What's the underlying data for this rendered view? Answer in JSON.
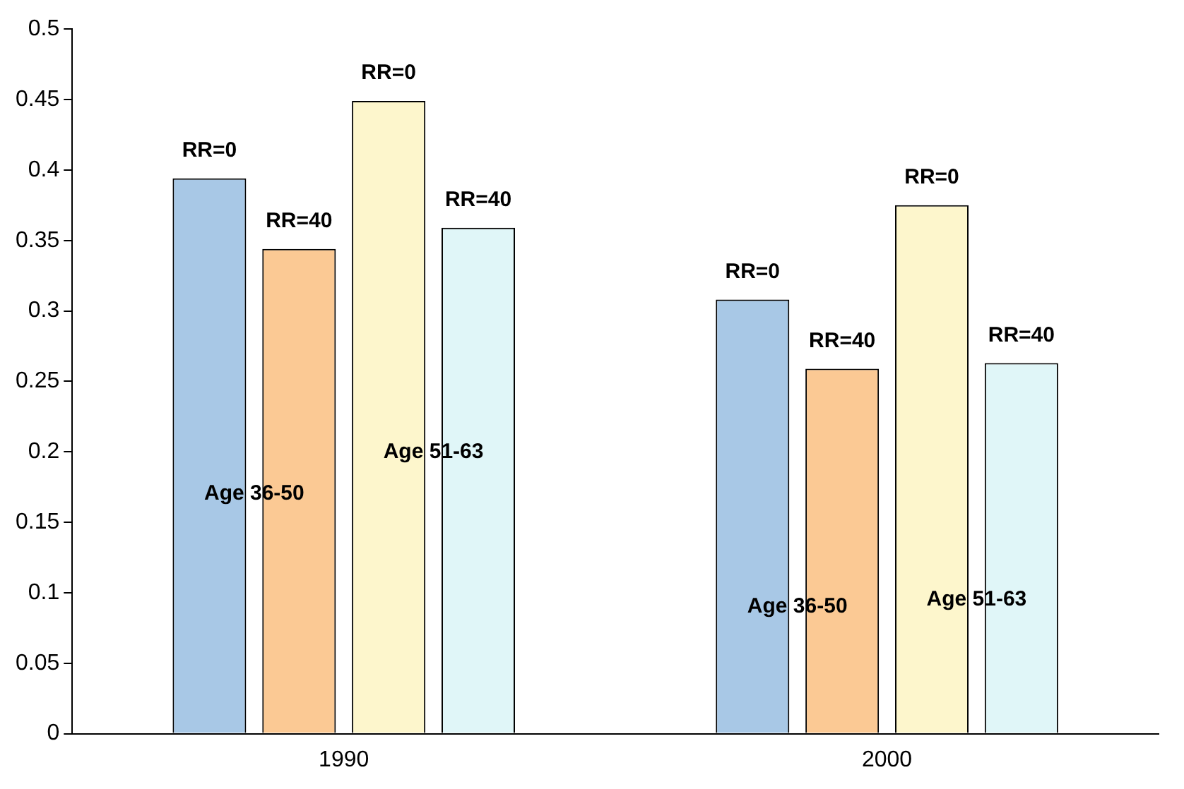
{
  "chart_data": {
    "type": "bar",
    "categories": [
      "1990",
      "2000"
    ],
    "series": [
      {
        "color": "#a8c8e6",
        "values": [
          0.394,
          0.308
        ]
      },
      {
        "color": "#fbc994",
        "values": [
          0.344,
          0.259
        ]
      },
      {
        "color": "#fdf6cc",
        "values": [
          0.449,
          0.375
        ]
      },
      {
        "color": "#e0f6f8",
        "values": [
          0.359,
          0.263
        ]
      }
    ],
    "annotations": [
      "RR=0",
      "RR=40",
      "RR=0",
      "RR=40",
      "RR=0",
      "RR=40",
      "RR=0",
      "RR=40",
      "Age 36-50",
      "Age 51-63",
      "Age 36-50",
      "Age 51-63"
    ],
    "ylim": [
      0,
      0.5
    ],
    "yticks": [
      0,
      0.05,
      0.1,
      0.15,
      0.2,
      0.25,
      0.3,
      0.35,
      0.4,
      0.45,
      0.5
    ],
    "grid": false,
    "legend": false
  }
}
